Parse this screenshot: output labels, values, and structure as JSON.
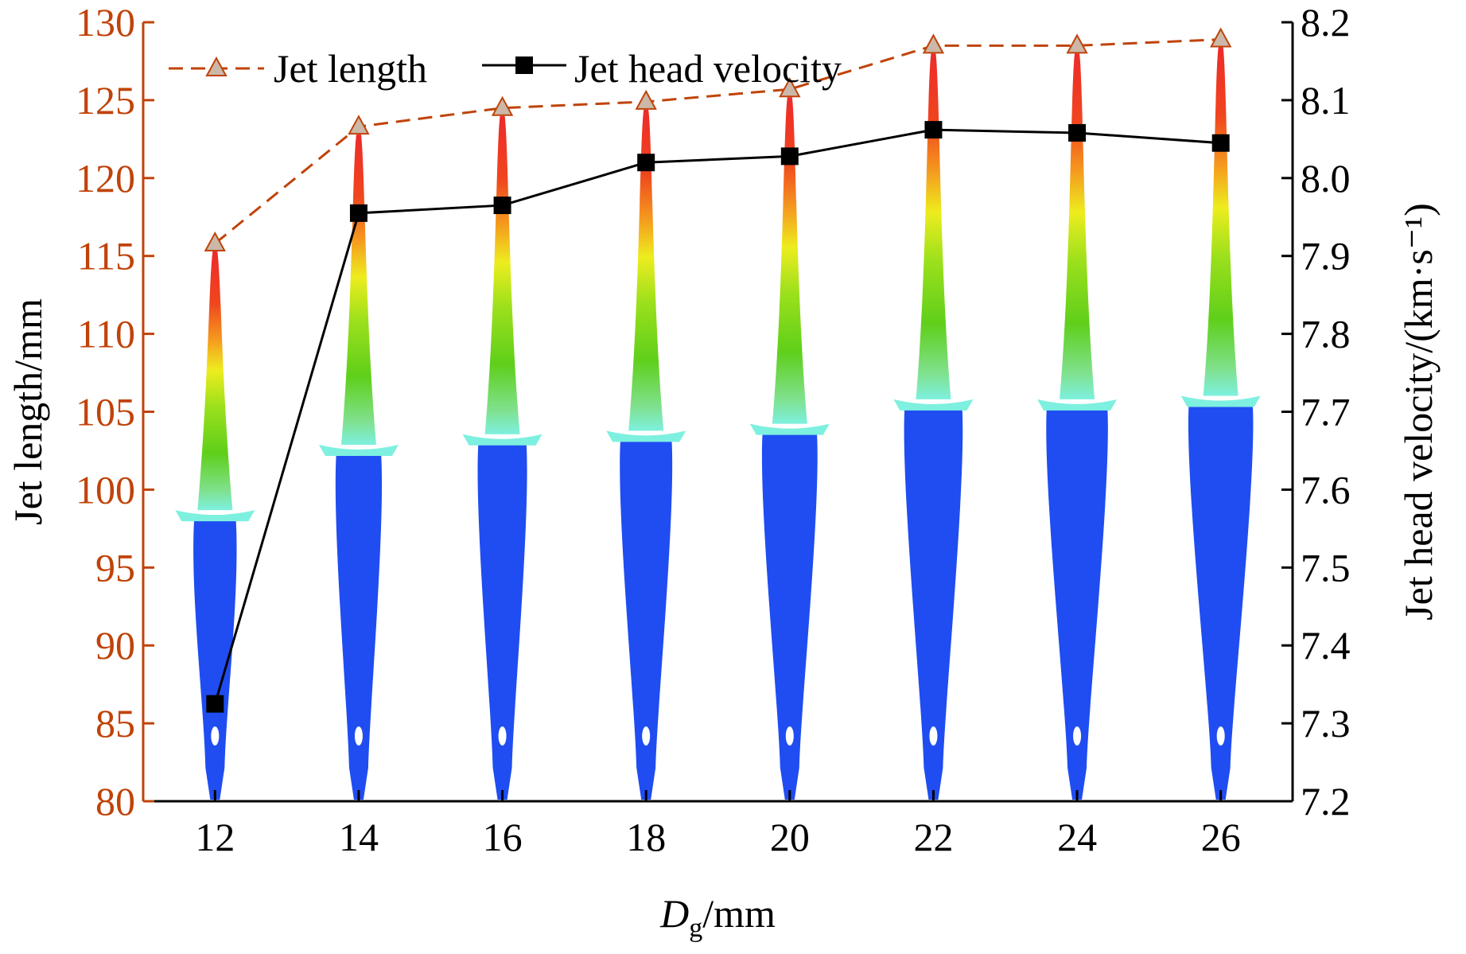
{
  "chart_data": {
    "type": "line",
    "x": [
      12,
      14,
      16,
      18,
      20,
      22,
      24,
      26
    ],
    "xlabel": {
      "main": "D",
      "sub": "g",
      "unit": "/mm"
    },
    "ylabel_left": "Jet length/mm",
    "ylabel_right": "Jet head velocity/(km·s⁻¹)",
    "ylim_left": [
      80,
      130
    ],
    "ylim_right": [
      7.2,
      8.2
    ],
    "xticks": [
      "12",
      "14",
      "16",
      "18",
      "20",
      "22",
      "24",
      "26"
    ],
    "yticks_left": [
      "80",
      "85",
      "90",
      "95",
      "100",
      "105",
      "110",
      "115",
      "120",
      "125",
      "130"
    ],
    "yticks_right": [
      "7.2",
      "7.3",
      "7.4",
      "7.5",
      "7.6",
      "7.7",
      "7.8",
      "7.9",
      "8.0",
      "8.1",
      "8.2"
    ],
    "legend_position": "top-left",
    "grid": false,
    "series": [
      {
        "name": "Jet length",
        "axis": "left",
        "values": [
          115.8,
          123.3,
          124.5,
          124.9,
          125.7,
          128.5,
          128.5,
          128.9
        ],
        "color": "#c0430a",
        "marker": "triangle",
        "marker_color": "#cbb8a8",
        "line_style": "dashed"
      },
      {
        "name": "Jet head velocity",
        "axis": "right",
        "values": [
          7.325,
          7.955,
          7.965,
          8.02,
          8.028,
          8.062,
          8.058,
          8.045
        ],
        "color": "#000000",
        "marker": "square",
        "marker_color": "#000000",
        "line_style": "solid"
      }
    ],
    "background_images": "jet-shape simulation contours at each D_g",
    "colors": {
      "left_axis": "#c0430a",
      "right_axis": "#000000",
      "jet_head_red": "#ee2a2a",
      "jet_orange": "#f59a1e",
      "jet_yellow": "#eded1e",
      "jet_green": "#6ccd1a",
      "jet_cyan": "#7ef0df",
      "jet_blue": "#1f4df2"
    }
  }
}
